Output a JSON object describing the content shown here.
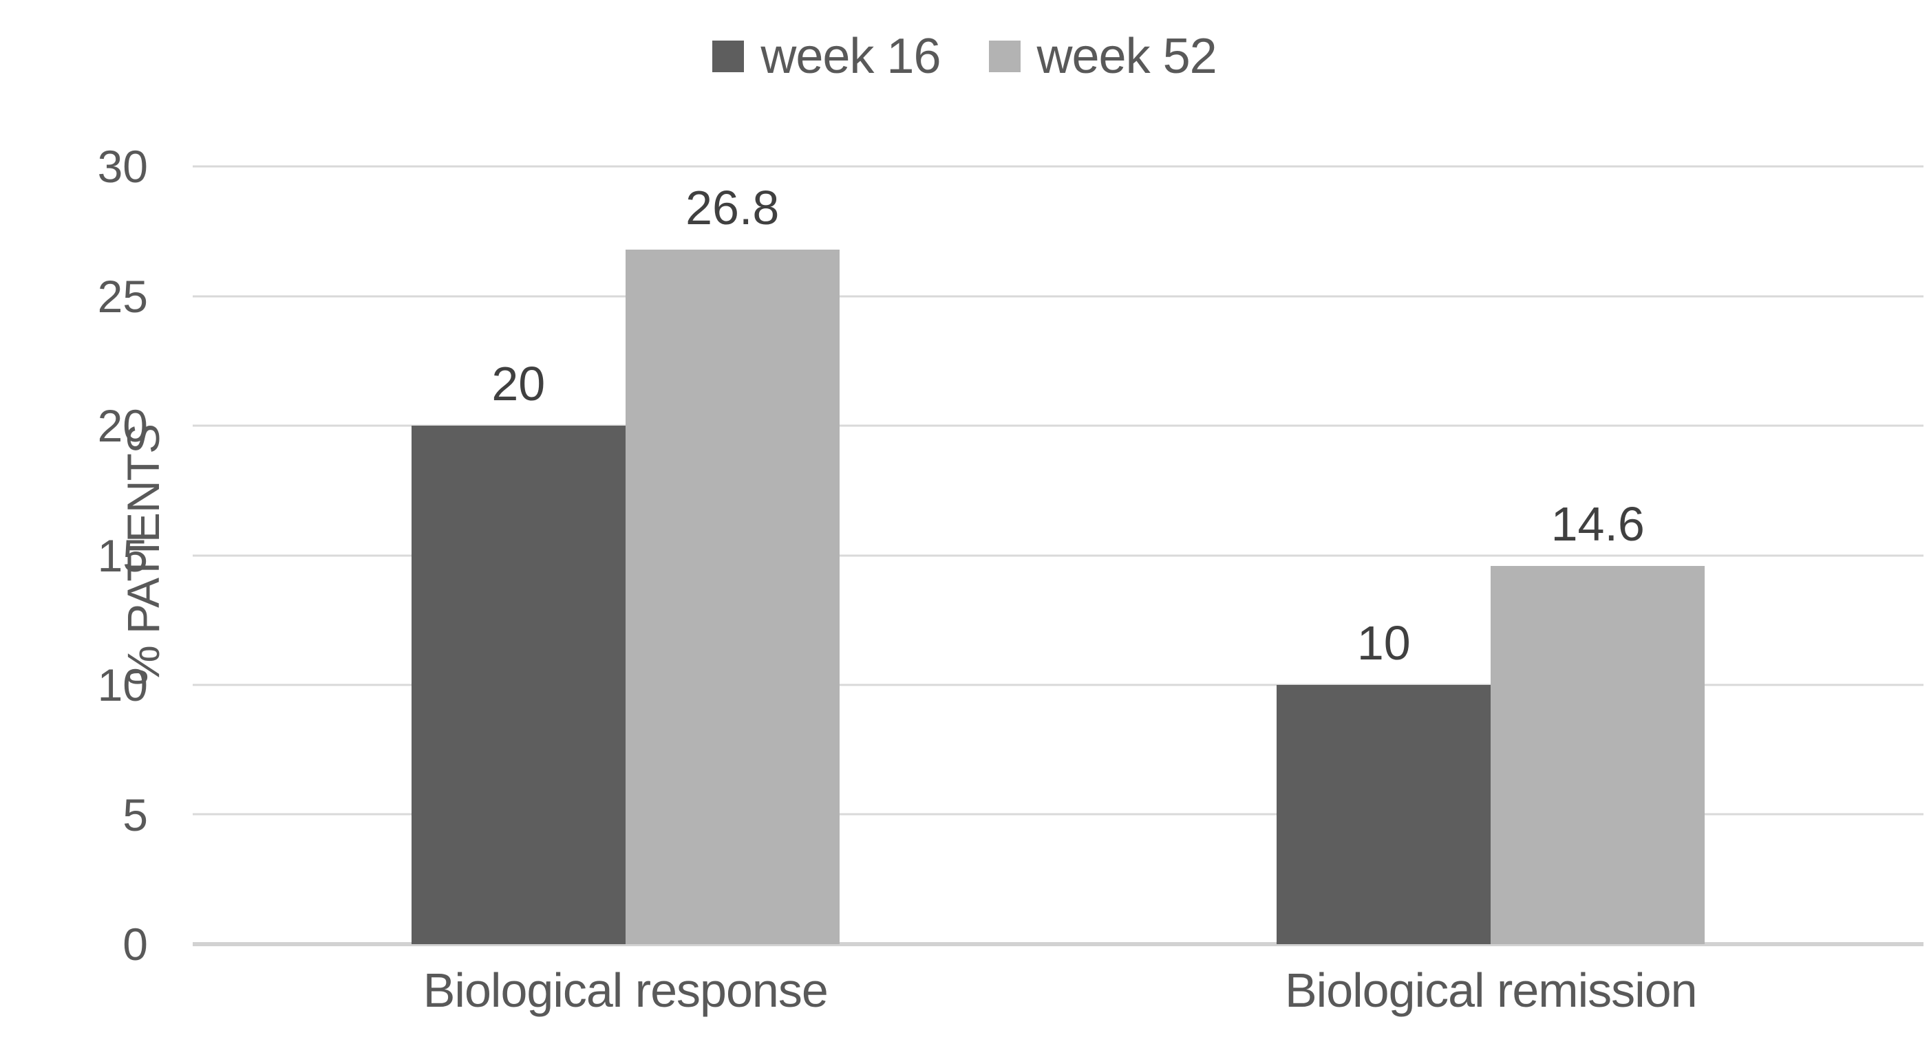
{
  "chart_data": {
    "type": "bar",
    "title": "",
    "categories": [
      "Biological response",
      "Biological remission"
    ],
    "series": [
      {
        "name": "week 16",
        "color": "#5e5e5e",
        "values": [
          20,
          10
        ]
      },
      {
        "name": "week 52",
        "color": "#b3b3b3",
        "values": [
          26.8,
          14.6
        ]
      }
    ],
    "ylabel": "% PATIENTS",
    "ylim": [
      0,
      30
    ],
    "yticks": [
      30,
      25,
      20,
      15,
      10,
      5,
      0
    ],
    "grid": "horizontal",
    "gridline_color": "#d9d9d9",
    "legend_position": "top-center",
    "data_labels": true,
    "data_label_color": "#404040",
    "axis_text_color": "#595959",
    "background_color": "#ffffff"
  }
}
